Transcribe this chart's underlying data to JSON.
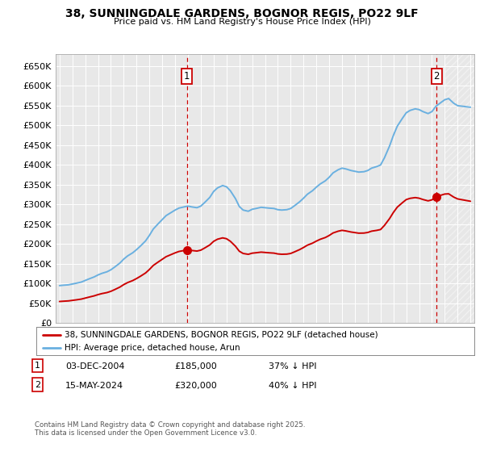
{
  "title": "38, SUNNINGDALE GARDENS, BOGNOR REGIS, PO22 9LF",
  "subtitle": "Price paid vs. HM Land Registry's House Price Index (HPI)",
  "ylabel_ticks": [
    "£0",
    "£50K",
    "£100K",
    "£150K",
    "£200K",
    "£250K",
    "£300K",
    "£350K",
    "£400K",
    "£450K",
    "£500K",
    "£550K",
    "£600K",
    "£650K"
  ],
  "ytick_values": [
    0,
    50000,
    100000,
    150000,
    200000,
    250000,
    300000,
    350000,
    400000,
    450000,
    500000,
    550000,
    600000,
    650000
  ],
  "ylim": [
    0,
    680000
  ],
  "xlim_start": 1994.7,
  "xlim_end": 2027.3,
  "hpi_color": "#6ab0e0",
  "price_color": "#cc0000",
  "sale1_year": 2004.92,
  "sale1_price": 185000,
  "sale2_year": 2024.37,
  "sale2_price": 320000,
  "annotation1_text": "1",
  "annotation2_text": "2",
  "legend_line1": "38, SUNNINGDALE GARDENS, BOGNOR REGIS, PO22 9LF (detached house)",
  "legend_line2": "HPI: Average price, detached house, Arun",
  "background_color": "#ffffff",
  "plot_bg_color": "#e8e8e8",
  "grid_color": "#ffffff",
  "footer": "Contains HM Land Registry data © Crown copyright and database right 2025.\nThis data is licensed under the Open Government Licence v3.0."
}
